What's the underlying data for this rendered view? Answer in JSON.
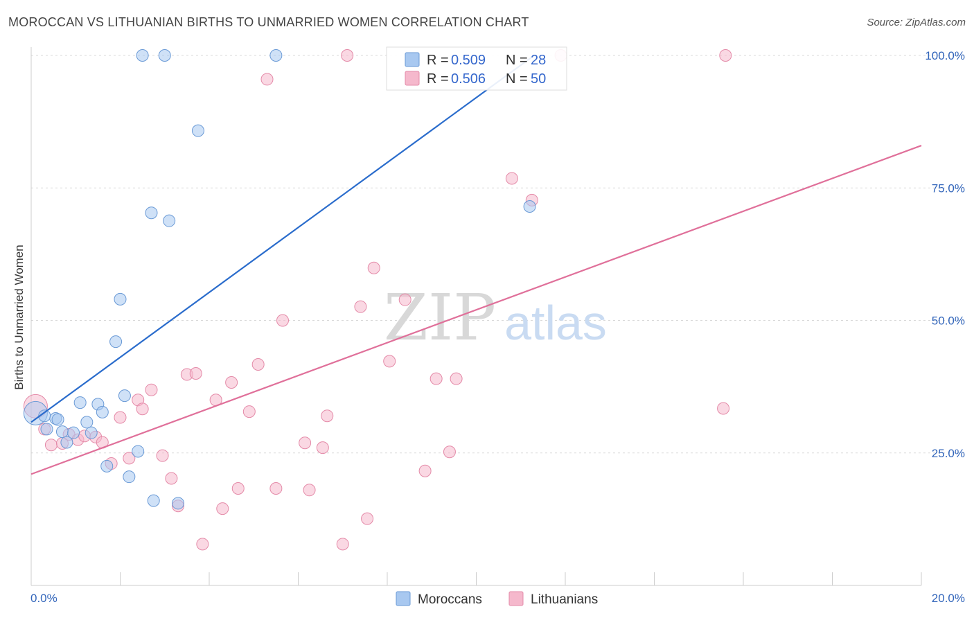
{
  "title": "MOROCCAN VS LITHUANIAN BIRTHS TO UNMARRIED WOMEN CORRELATION CHART",
  "source": "Source: ZipAtlas.com",
  "watermark": {
    "zip": "ZIP",
    "atlas": "atlas"
  },
  "chart_data": {
    "type": "scatter",
    "xlabel": "",
    "ylabel": "Births to Unmarried Women",
    "xlim": [
      0,
      20
    ],
    "ylim": [
      0,
      102
    ],
    "x_tick_labels": [
      "0.0%",
      "20.0%"
    ],
    "y_ticks": [
      25,
      50,
      75,
      100
    ],
    "y_tick_labels": [
      "25.0%",
      "50.0%",
      "75.0%",
      "100.0%"
    ],
    "grid": true,
    "legend_stats": [
      {
        "r_label": "R =",
        "r_value": "0.509",
        "n_label": "N =",
        "n_value": "28",
        "color": "#a8c8f0"
      },
      {
        "r_label": "R =",
        "r_value": "0.506",
        "n_label": "N =",
        "n_value": "50",
        "color": "#f5b8cc"
      }
    ],
    "series": [
      {
        "name": "Moroccans",
        "color": "#a8c8f0",
        "stroke": "#6a9ad6",
        "line_color": "#2a6ccc",
        "trend": {
          "x": [
            0.0,
            11.3
          ],
          "y": [
            30.8,
            100.0
          ]
        },
        "points": [
          {
            "x": 0.1,
            "y": 32.5,
            "big": true
          },
          {
            "x": 0.3,
            "y": 32.0
          },
          {
            "x": 0.35,
            "y": 29.5
          },
          {
            "x": 0.55,
            "y": 31.5
          },
          {
            "x": 0.6,
            "y": 31.3
          },
          {
            "x": 0.7,
            "y": 29.0
          },
          {
            "x": 0.8,
            "y": 27.0
          },
          {
            "x": 0.95,
            "y": 28.8
          },
          {
            "x": 1.1,
            "y": 34.5
          },
          {
            "x": 1.25,
            "y": 30.8
          },
          {
            "x": 1.35,
            "y": 28.8
          },
          {
            "x": 1.5,
            "y": 34.2
          },
          {
            "x": 1.6,
            "y": 32.7
          },
          {
            "x": 1.7,
            "y": 22.5
          },
          {
            "x": 1.9,
            "y": 46.0
          },
          {
            "x": 2.0,
            "y": 54.0
          },
          {
            "x": 2.1,
            "y": 35.8
          },
          {
            "x": 2.2,
            "y": 20.5
          },
          {
            "x": 2.4,
            "y": 25.3
          },
          {
            "x": 2.5,
            "y": 100.0
          },
          {
            "x": 2.7,
            "y": 70.3
          },
          {
            "x": 2.75,
            "y": 16.0
          },
          {
            "x": 3.0,
            "y": 100.0
          },
          {
            "x": 3.1,
            "y": 68.8
          },
          {
            "x": 3.3,
            "y": 15.5
          },
          {
            "x": 3.75,
            "y": 85.8
          },
          {
            "x": 5.5,
            "y": 100.0
          },
          {
            "x": 11.2,
            "y": 71.5
          }
        ]
      },
      {
        "name": "Lithuanians",
        "color": "#f5b8cc",
        "stroke": "#e48aa8",
        "line_color": "#e0709a",
        "trend": {
          "x": [
            0.0,
            20.0
          ],
          "y": [
            21.0,
            83.0
          ]
        },
        "points": [
          {
            "x": 0.1,
            "y": 33.8,
            "big": true
          },
          {
            "x": 0.3,
            "y": 29.5
          },
          {
            "x": 0.45,
            "y": 26.5
          },
          {
            "x": 0.7,
            "y": 26.8
          },
          {
            "x": 0.85,
            "y": 28.5
          },
          {
            "x": 1.05,
            "y": 27.5
          },
          {
            "x": 1.2,
            "y": 28.2
          },
          {
            "x": 1.45,
            "y": 28.0
          },
          {
            "x": 1.6,
            "y": 27.0
          },
          {
            "x": 1.8,
            "y": 23.0
          },
          {
            "x": 2.0,
            "y": 31.7
          },
          {
            "x": 2.2,
            "y": 24.0
          },
          {
            "x": 2.4,
            "y": 35.0
          },
          {
            "x": 2.5,
            "y": 33.3
          },
          {
            "x": 2.7,
            "y": 36.9
          },
          {
            "x": 2.95,
            "y": 24.5
          },
          {
            "x": 3.15,
            "y": 20.2
          },
          {
            "x": 3.3,
            "y": 15.0
          },
          {
            "x": 3.5,
            "y": 39.8
          },
          {
            "x": 3.7,
            "y": 40.0
          },
          {
            "x": 3.85,
            "y": 7.8
          },
          {
            "x": 4.15,
            "y": 35.0
          },
          {
            "x": 4.3,
            "y": 14.5
          },
          {
            "x": 4.5,
            "y": 38.3
          },
          {
            "x": 4.65,
            "y": 18.3
          },
          {
            "x": 4.9,
            "y": 32.8
          },
          {
            "x": 5.1,
            "y": 41.7
          },
          {
            "x": 5.3,
            "y": 95.5
          },
          {
            "x": 5.5,
            "y": 18.3
          },
          {
            "x": 5.65,
            "y": 50.0
          },
          {
            "x": 6.15,
            "y": 26.9
          },
          {
            "x": 6.25,
            "y": 18.0
          },
          {
            "x": 6.55,
            "y": 26.0
          },
          {
            "x": 6.65,
            "y": 32.0
          },
          {
            "x": 7.0,
            "y": 7.8
          },
          {
            "x": 7.1,
            "y": 100.0
          },
          {
            "x": 7.4,
            "y": 52.6
          },
          {
            "x": 7.55,
            "y": 12.6
          },
          {
            "x": 7.7,
            "y": 59.9
          },
          {
            "x": 8.05,
            "y": 42.3
          },
          {
            "x": 8.4,
            "y": 53.9
          },
          {
            "x": 8.85,
            "y": 21.6
          },
          {
            "x": 9.1,
            "y": 39.0
          },
          {
            "x": 9.4,
            "y": 25.2
          },
          {
            "x": 9.55,
            "y": 39.0
          },
          {
            "x": 10.8,
            "y": 76.8
          },
          {
            "x": 11.25,
            "y": 72.7
          },
          {
            "x": 11.9,
            "y": 100.0
          },
          {
            "x": 15.55,
            "y": 33.4
          },
          {
            "x": 15.6,
            "y": 100.0
          }
        ]
      }
    ]
  }
}
